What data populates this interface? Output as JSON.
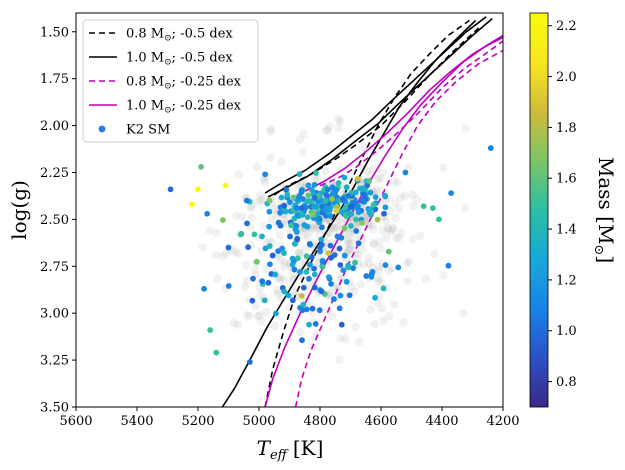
{
  "chart_data": {
    "type": "scatter",
    "x_axis": {
      "label": "T",
      "label_sub": "eff",
      "label_unit": "[K]",
      "range": [
        5600,
        4200
      ],
      "ticks": [
        5600,
        5400,
        5200,
        5000,
        4800,
        4600,
        4400,
        4200
      ],
      "tick_labels": [
        "5600",
        "5400",
        "5200",
        "5000",
        "4800",
        "4600",
        "4400",
        "4200"
      ]
    },
    "y_axis": {
      "label": "log(g)",
      "range": [
        1.4,
        3.5
      ],
      "ticks": [
        1.5,
        1.75,
        2.0,
        2.25,
        2.5,
        2.75,
        3.0,
        3.25,
        3.5
      ],
      "tick_labels": [
        "1.50",
        "1.75",
        "2.00",
        "2.25",
        "2.50",
        "2.75",
        "3.00",
        "3.25",
        "3.50"
      ]
    },
    "colorbar": {
      "label": "Mass [M",
      "label_sub": "⊙",
      "label_end": "]",
      "range": [
        0.7,
        2.25
      ],
      "ticks": [
        0.8,
        1.0,
        1.2,
        1.4,
        1.6,
        1.8,
        2.0,
        2.2
      ],
      "tick_labels": [
        "0.8",
        "1.0",
        "1.2",
        "1.4",
        "1.6",
        "1.8",
        "2.0",
        "2.2"
      ],
      "colormap": [
        "#3b2a86",
        "#2c50c8",
        "#1883e8",
        "#17a9d8",
        "#2bbfa4",
        "#7cc565",
        "#d1bb3c",
        "#f9e61f",
        "#f9fb0e"
      ]
    },
    "legend": {
      "position": "upper-left",
      "entries": [
        {
          "label": "0.8 M",
          "sub": "⊙",
          "suffix": "; -0.5 dex",
          "color": "#000000",
          "style": "dashed"
        },
        {
          "label": "1.0 M",
          "sub": "⊙",
          "suffix": "; -0.5 dex",
          "color": "#000000",
          "style": "solid"
        },
        {
          "label": "0.8 M",
          "sub": "⊙",
          "suffix": "; -0.25 dex",
          "color": "#bf00bf",
          "style": "dashed"
        },
        {
          "label": "1.0 M",
          "sub": "⊙",
          "suffix": "; -0.25 dex",
          "color": "#bf00bf",
          "style": "solid"
        },
        {
          "label": "K2 SM",
          "sub": "",
          "suffix": "",
          "color": "#2a7fd4",
          "style": "marker"
        }
      ]
    },
    "tracks": [
      {
        "name": "0.8 Msun; -0.5 dex",
        "color": "#000000",
        "style": "dashed",
        "points": [
          [
            4980,
            3.5
          ],
          [
            4955,
            3.3
          ],
          [
            4920,
            3.1
          ],
          [
            4880,
            2.9
          ],
          [
            4835,
            2.75
          ],
          [
            4790,
            2.6
          ],
          [
            4745,
            2.45
          ],
          [
            4700,
            2.3
          ],
          [
            4655,
            2.15
          ],
          [
            4610,
            2.0
          ],
          [
            4555,
            1.85
          ],
          [
            4500,
            1.72
          ],
          [
            4430,
            1.6
          ],
          [
            4380,
            1.52
          ],
          [
            4310,
            1.44
          ]
        ]
      },
      {
        "name": "0.8 Msun; -0.5 dex RGB bump/HB loop",
        "color": "#000000",
        "style": "dashed",
        "points": [
          [
            4950,
            2.37
          ],
          [
            4905,
            2.32
          ],
          [
            4830,
            2.26
          ],
          [
            4750,
            2.18
          ],
          [
            4680,
            2.1
          ],
          [
            4600,
            2.0
          ],
          [
            4520,
            1.87
          ],
          [
            4440,
            1.73
          ],
          [
            4360,
            1.6
          ],
          [
            4280,
            1.48
          ]
        ]
      },
      {
        "name": "1.0 Msun; -0.5 dex",
        "color": "#000000",
        "style": "solid",
        "points": [
          [
            5120,
            3.5
          ],
          [
            5080,
            3.4
          ],
          [
            5030,
            3.25
          ],
          [
            4975,
            3.08
          ],
          [
            4920,
            2.93
          ],
          [
            4860,
            2.77
          ],
          [
            4800,
            2.62
          ],
          [
            4745,
            2.48
          ],
          [
            4690,
            2.33
          ],
          [
            4640,
            2.18
          ],
          [
            4590,
            2.04
          ],
          [
            4540,
            1.9
          ],
          [
            4480,
            1.77
          ],
          [
            4420,
            1.65
          ],
          [
            4360,
            1.55
          ],
          [
            4290,
            1.44
          ]
        ]
      },
      {
        "name": "1.0 Msun; -0.5 dex HB loop",
        "color": "#000000",
        "style": "solid",
        "points": [
          [
            4980,
            2.36
          ],
          [
            4920,
            2.3
          ],
          [
            4850,
            2.24
          ],
          [
            4770,
            2.15
          ],
          [
            4700,
            2.06
          ],
          [
            4630,
            1.97
          ],
          [
            4560,
            1.86
          ],
          [
            4480,
            1.74
          ],
          [
            4400,
            1.62
          ],
          [
            4320,
            1.5
          ],
          [
            4255,
            1.42
          ]
        ]
      },
      {
        "name": "1.0 Msun; -0.5 dex HB loop 2",
        "color": "#000000",
        "style": "solid",
        "points": [
          [
            4970,
            2.38
          ],
          [
            4910,
            2.33
          ],
          [
            4840,
            2.27
          ],
          [
            4760,
            2.18
          ],
          [
            4690,
            2.09
          ],
          [
            4610,
            1.99
          ],
          [
            4540,
            1.88
          ],
          [
            4460,
            1.76
          ],
          [
            4380,
            1.64
          ],
          [
            4300,
            1.52
          ],
          [
            4235,
            1.43
          ]
        ]
      },
      {
        "name": "0.8 Msun; -0.25 dex",
        "color": "#bf00bf",
        "style": "dashed",
        "points": [
          [
            4880,
            3.5
          ],
          [
            4860,
            3.35
          ],
          [
            4830,
            3.2
          ],
          [
            4790,
            3.05
          ],
          [
            4750,
            2.9
          ],
          [
            4710,
            2.75
          ],
          [
            4665,
            2.6
          ],
          [
            4620,
            2.45
          ],
          [
            4575,
            2.3
          ],
          [
            4530,
            2.15
          ],
          [
            4480,
            2.0
          ],
          [
            4420,
            1.87
          ],
          [
            4350,
            1.76
          ],
          [
            4280,
            1.67
          ],
          [
            4200,
            1.6
          ]
        ]
      },
      {
        "name": "0.8 Msun; -0.25 dex HB loop",
        "color": "#bf00bf",
        "style": "dashed",
        "points": [
          [
            4800,
            2.32
          ],
          [
            4740,
            2.28
          ],
          [
            4680,
            2.22
          ],
          [
            4610,
            2.13
          ],
          [
            4540,
            2.03
          ],
          [
            4470,
            1.92
          ],
          [
            4400,
            1.8
          ],
          [
            4330,
            1.7
          ],
          [
            4260,
            1.62
          ],
          [
            4200,
            1.55
          ]
        ]
      },
      {
        "name": "1.0 Msun; -0.25 dex",
        "color": "#bf00bf",
        "style": "solid",
        "points": [
          [
            4980,
            3.5
          ],
          [
            4955,
            3.35
          ],
          [
            4915,
            3.18
          ],
          [
            4865,
            3.0
          ],
          [
            4810,
            2.82
          ],
          [
            4755,
            2.65
          ],
          [
            4700,
            2.48
          ],
          [
            4645,
            2.32
          ],
          [
            4590,
            2.17
          ],
          [
            4530,
            2.02
          ],
          [
            4470,
            1.89
          ],
          [
            4400,
            1.77
          ],
          [
            4330,
            1.66
          ],
          [
            4260,
            1.58
          ],
          [
            4200,
            1.53
          ]
        ]
      },
      {
        "name": "1.0 Msun; -0.25 dex HB loop",
        "color": "#bf00bf",
        "style": "solid",
        "points": [
          [
            4850,
            2.35
          ],
          [
            4790,
            2.3
          ],
          [
            4720,
            2.23
          ],
          [
            4650,
            2.14
          ],
          [
            4580,
            2.04
          ],
          [
            4510,
            1.93
          ],
          [
            4440,
            1.81
          ],
          [
            4370,
            1.71
          ],
          [
            4300,
            1.62
          ],
          [
            4230,
            1.55
          ],
          [
            4200,
            1.52
          ]
        ]
      }
    ]
  }
}
